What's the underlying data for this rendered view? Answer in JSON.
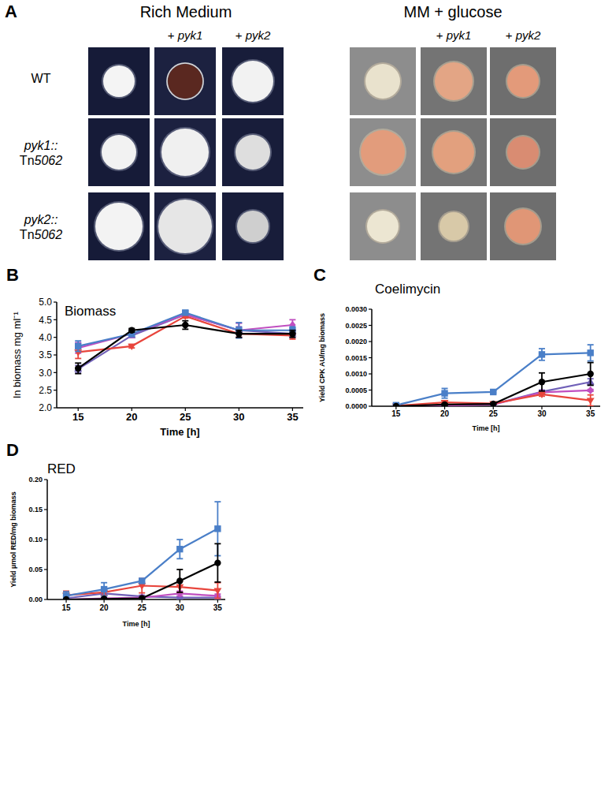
{
  "panel_a": {
    "label": "A",
    "groups": [
      {
        "title": "Rich Medium",
        "subheaders": [
          "+ pyk1",
          "+ pyk2"
        ]
      },
      {
        "title": "MM + glucose",
        "subheaders": [
          "+ pyk1",
          "+ pyk2"
        ]
      }
    ],
    "rows": [
      "WT",
      "pyk1::Tn5062",
      "pyk2::Tn5062"
    ]
  },
  "chart_data": [
    {
      "type": "line",
      "label": "B",
      "title": "Biomass",
      "x_label": "Time [h]",
      "y_label": "ln biomass mg ml⁻¹",
      "x": [
        15,
        20,
        25,
        30,
        35
      ],
      "xlim": [
        13,
        36
      ],
      "xticks": [
        15,
        20,
        25,
        30,
        35
      ],
      "ylim": [
        2,
        5
      ],
      "yticks": [
        {
          "value": 2,
          "label": "2.0"
        },
        {
          "value": 2.5,
          "label": "2.5"
        },
        {
          "value": 3,
          "label": "3.0"
        },
        {
          "value": 3.5,
          "label": "3.5"
        },
        {
          "value": 4,
          "label": "4.0"
        },
        {
          "value": 4.5,
          "label": "4.5"
        },
        {
          "value": 5,
          "label": "5.0"
        }
      ],
      "series": [
        {
          "color": "#7060b8",
          "marker": "triangle-up",
          "values": [
            3.1,
            4.05,
            4.65,
            4.2,
            4.1
          ],
          "errors": [
            0.1,
            0.05,
            0.05,
            0.1,
            0.1
          ]
        },
        {
          "color": "#c04fc0",
          "marker": "diamond",
          "values": [
            3.7,
            4.1,
            4.65,
            4.2,
            4.35
          ],
          "errors": [
            0.15,
            0.1,
            0.1,
            0.2,
            0.15
          ]
        },
        {
          "color": "#e8453c",
          "marker": "triangle-down",
          "values": [
            3.58,
            3.75,
            4.6,
            4.1,
            4.05
          ],
          "errors": [
            0.18,
            0.05,
            0.05,
            0.1,
            0.1
          ]
        },
        {
          "color": "#4a7fc8",
          "marker": "square",
          "values": [
            3.75,
            4.1,
            4.7,
            4.2,
            4.2
          ],
          "errors": [
            0.15,
            0.08,
            0.05,
            0.22,
            0.1
          ]
        },
        {
          "color": "#000000",
          "marker": "circle",
          "values": [
            3.12,
            4.2,
            4.35,
            4.1,
            4.1
          ],
          "errors": [
            0.15,
            0.05,
            0.12,
            0.1,
            0.1
          ]
        }
      ]
    },
    {
      "type": "line",
      "label": "C",
      "title": "Coelimycin",
      "x_label": "Time [h]",
      "y_label": "Yield CPK AU/mg biomass",
      "x": [
        15,
        20,
        25,
        30,
        35
      ],
      "xlim": [
        12.5,
        36
      ],
      "xticks": [
        15,
        20,
        25,
        30,
        35
      ],
      "ylim": [
        0,
        0.003
      ],
      "yticks": [
        {
          "value": 0,
          "label": "0.0000"
        },
        {
          "value": 0.0005,
          "label": "0.0005"
        },
        {
          "value": 0.001,
          "label": "0.0010"
        },
        {
          "value": 0.0015,
          "label": "0.0015"
        },
        {
          "value": 0.002,
          "label": "0.0020"
        },
        {
          "value": 0.0025,
          "label": "0.0025"
        },
        {
          "value": 0.003,
          "label": "0.0030"
        }
      ],
      "series": [
        {
          "color": "#7060b8",
          "marker": "triangle-up",
          "values": [
            0,
            3e-05,
            6e-05,
            0.00045,
            0.00075
          ],
          "errors": [
            0,
            2e-05,
            2e-05,
            5e-05,
            0.0001
          ]
        },
        {
          "color": "#c04fc0",
          "marker": "diamond",
          "values": [
            0,
            2e-05,
            5e-05,
            0.00043,
            0.00049
          ],
          "errors": [
            0,
            1e-05,
            2e-05,
            4e-05,
            3e-05
          ]
        },
        {
          "color": "#e8453c",
          "marker": "triangle-down",
          "values": [
            1e-05,
            0.00012,
            8e-05,
            0.00037,
            0.00018
          ],
          "errors": [
            1e-05,
            4e-05,
            2e-05,
            6e-05,
            0.00017
          ]
        },
        {
          "color": "#4a7fc8",
          "marker": "square",
          "values": [
            3e-05,
            0.0004,
            0.00044,
            0.0016,
            0.00165
          ],
          "errors": [
            1e-05,
            0.00015,
            3e-05,
            0.00018,
            0.00025
          ]
        },
        {
          "color": "#000000",
          "marker": "circle",
          "values": [
            0,
            5e-05,
            7e-05,
            0.00075,
            0.001
          ],
          "errors": [
            0,
            3e-05,
            2e-05,
            0.00028,
            0.00035
          ]
        }
      ]
    },
    {
      "type": "line",
      "label": "D",
      "title": "RED",
      "x_label": "Time [h]",
      "y_label": "Yield µmol RED/mg biomass",
      "x": [
        15,
        20,
        25,
        30,
        35
      ],
      "xlim": [
        12.5,
        36
      ],
      "xticks": [
        15,
        20,
        25,
        30,
        35
      ],
      "ylim": [
        0,
        0.2
      ],
      "yticks": [
        {
          "value": 0,
          "label": "0.00"
        },
        {
          "value": 0.05,
          "label": "0.05"
        },
        {
          "value": 0.1,
          "label": "0.10"
        },
        {
          "value": 0.15,
          "label": "0.15"
        },
        {
          "value": 0.2,
          "label": "0.20"
        }
      ],
      "series": [
        {
          "color": "#7060b8",
          "marker": "triangle-up",
          "values": [
            0.002,
            0.01,
            0.005,
            0.003,
            0.003
          ],
          "errors": [
            0.002,
            0.003,
            0.002,
            0.002,
            0.002
          ]
        },
        {
          "color": "#c04fc0",
          "marker": "diamond",
          "values": [
            0,
            0.002,
            0.003,
            0.01,
            0.006
          ],
          "errors": [
            0,
            0.001,
            0.002,
            0.004,
            0.003
          ]
        },
        {
          "color": "#e8453c",
          "marker": "triangle-down",
          "values": [
            0.007,
            0.012,
            0.023,
            0.021,
            0.015
          ],
          "errors": [
            0.007,
            0.005,
            0.012,
            0.009,
            0.013
          ]
        },
        {
          "color": "#4a7fc8",
          "marker": "square",
          "values": [
            0.006,
            0.017,
            0.031,
            0.084,
            0.118
          ],
          "errors": [
            0.007,
            0.011,
            0.003,
            0.016,
            0.045
          ]
        },
        {
          "color": "#000000",
          "marker": "circle",
          "values": [
            0,
            0.001,
            0.002,
            0.031,
            0.061
          ],
          "errors": [
            0,
            0.001,
            0.001,
            0.019,
            0.032
          ]
        }
      ]
    }
  ]
}
